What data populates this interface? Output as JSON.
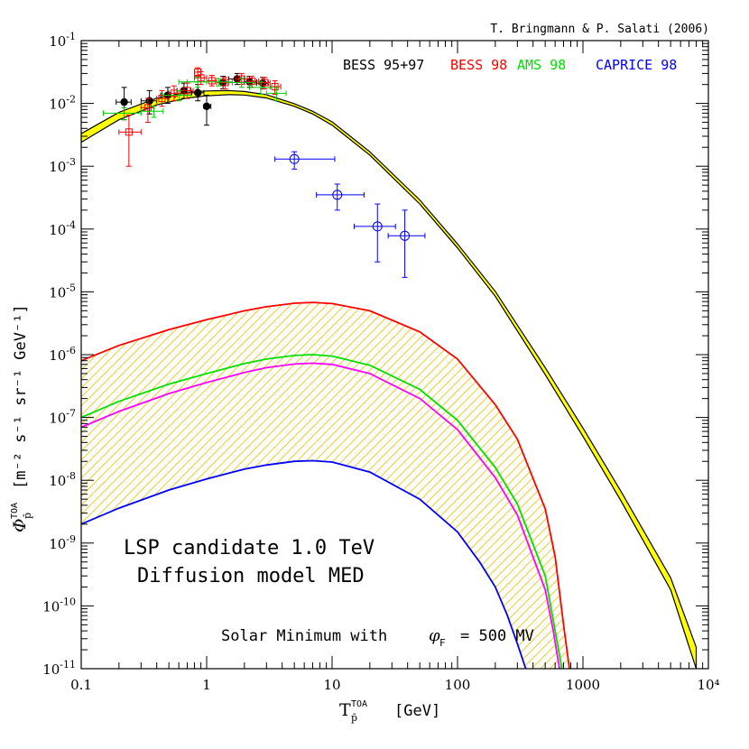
{
  "credit": "T. Bringmann & P. Salati (2006)",
  "chart_data": {
    "type": "line",
    "xscale": "log",
    "yscale": "log",
    "xlim": [
      0.1,
      10000
    ],
    "ylim": [
      1e-11,
      0.1
    ],
    "x_tick_labels": [
      "0.1",
      "1",
      "10",
      "100",
      "1000",
      "10⁴"
    ],
    "y_tick_labels": [
      {
        "m": "10",
        "e": "-1"
      },
      {
        "m": "10",
        "e": "-2"
      },
      {
        "m": "10",
        "e": "-3"
      },
      {
        "m": "10",
        "e": "-4"
      },
      {
        "m": "10",
        "e": "-5"
      },
      {
        "m": "10",
        "e": "-6"
      },
      {
        "m": "10",
        "e": "-7"
      },
      {
        "m": "10",
        "e": "-8"
      },
      {
        "m": "10",
        "e": "-9"
      },
      {
        "m": "10",
        "e": "-10"
      },
      {
        "m": "10",
        "e": "-11"
      }
    ],
    "xlabel": {
      "main": "T",
      "sup": "TOA",
      "sub": "p̄",
      "unit": "[GeV]"
    },
    "ylabel": {
      "main": "Φ",
      "sup": "TOA",
      "sub": "p̄",
      "unit": "[m⁻² s⁻¹ sr⁻¹ GeV⁻¹]"
    },
    "annotations": {
      "line1": "LSP candidate 1.0 TeV",
      "line2": "Diffusion model MED",
      "solar_prefix": "Solar Minimum with",
      "solar_phi": "φ",
      "solar_sub": "F",
      "solar_value": "= 500 MV"
    },
    "legend": [
      {
        "name": "BESS 95+97",
        "color": "#000000"
      },
      {
        "name": "BESS 98",
        "color": "#ff0000"
      },
      {
        "name": "AMS 98",
        "color": "#00cc00"
      },
      {
        "name": "CAPRICE 98",
        "color": "#0000ff"
      }
    ],
    "background_band": {
      "color": "#ffff00",
      "x": [
        0.1,
        0.2,
        0.4,
        0.7,
        1.0,
        1.5,
        2.0,
        3.0,
        5.0,
        7.0,
        10,
        20,
        50,
        100,
        200,
        500,
        1000,
        2000,
        5000,
        8000
      ],
      "lower": [
        0.0024,
        0.0055,
        0.0095,
        0.0122,
        0.0132,
        0.0138,
        0.0136,
        0.0122,
        0.009,
        0.0068,
        0.0045,
        0.0015,
        0.00025,
        5e-05,
        8.5e-06,
        4.8e-07,
        5e-08,
        4.8e-09,
        1.8e-10,
        1e-11
      ],
      "upper": [
        0.0033,
        0.0072,
        0.0121,
        0.015,
        0.0158,
        0.016,
        0.0155,
        0.0138,
        0.0099,
        0.0075,
        0.0051,
        0.0017,
        0.00029,
        5.8e-05,
        1.02e-05,
        6.2e-07,
        6.8e-08,
        6.8e-09,
        2.8e-10,
        2.2e-11
      ]
    },
    "series": [
      {
        "color": "#ff0000",
        "x": [
          0.1,
          0.2,
          0.5,
          1,
          2,
          3,
          5,
          7,
          10,
          20,
          50,
          100,
          200,
          300,
          500,
          600,
          700,
          780
        ],
        "values": [
          8e-07,
          1.4e-06,
          2.5e-06,
          3.6e-06,
          5e-06,
          5.8e-06,
          6.6e-06,
          6.8e-06,
          6.5e-06,
          5e-06,
          2.3e-06,
          8.5e-07,
          1.6e-07,
          4.5e-08,
          3.5e-09,
          6e-10,
          5e-11,
          1e-11
        ]
      },
      {
        "color": "#00e000",
        "x": [
          0.1,
          0.2,
          0.5,
          1,
          2,
          3,
          5,
          7,
          10,
          20,
          50,
          100,
          200,
          300,
          500,
          600,
          680
        ],
        "values": [
          1e-07,
          1.8e-07,
          3.4e-07,
          5e-07,
          7.2e-07,
          8.5e-07,
          9.7e-07,
          1e-06,
          9.5e-07,
          6.8e-07,
          2.8e-07,
          9e-08,
          1.6e-08,
          4.2e-09,
          3e-10,
          4e-11,
          1e-11
        ]
      },
      {
        "color": "#ff00ff",
        "x": [
          0.1,
          0.2,
          0.5,
          1,
          2,
          3,
          5,
          7,
          10,
          20,
          50,
          100,
          200,
          300,
          500,
          580,
          650
        ],
        "values": [
          7e-08,
          1.25e-07,
          2.4e-07,
          3.6e-07,
          5.2e-07,
          6.2e-07,
          7.1e-07,
          7.3e-07,
          7e-07,
          5e-07,
          2e-07,
          6.4e-08,
          1.1e-08,
          2.8e-09,
          1.8e-10,
          4e-11,
          1e-11
        ]
      },
      {
        "color": "#0000ff",
        "x": [
          0.1,
          0.2,
          0.5,
          1,
          2,
          3,
          5,
          7,
          10,
          20,
          50,
          100,
          150,
          200,
          250,
          300,
          350
        ],
        "values": [
          2e-09,
          3.6e-09,
          7e-09,
          1.05e-08,
          1.5e-08,
          1.75e-08,
          2e-08,
          2.05e-08,
          1.95e-08,
          1.35e-08,
          5e-09,
          1.5e-09,
          5e-10,
          2e-10,
          7e-11,
          2.5e-11,
          1e-11
        ]
      }
    ],
    "data_points": [
      {
        "set": "BESS 95+97",
        "color": "#000000",
        "marker": "filled-circle",
        "points": [
          {
            "x": 0.22,
            "y": 0.0105,
            "xe": [
              0.19,
              0.25
            ],
            "ye": [
              0.0055,
              0.018
            ]
          },
          {
            "x": 0.35,
            "y": 0.011,
            "xe": [
              0.3,
              0.4
            ],
            "ye": [
              0.0068,
              0.016
            ]
          },
          {
            "x": 0.49,
            "y": 0.0135,
            "xe": [
              0.43,
              0.56
            ],
            "ye": [
              0.01,
              0.018
            ]
          },
          {
            "x": 0.66,
            "y": 0.016,
            "xe": [
              0.58,
              0.75
            ],
            "ye": [
              0.012,
              0.021
            ]
          },
          {
            "x": 0.85,
            "y": 0.0148,
            "xe": [
              0.76,
              0.95
            ],
            "ye": [
              0.011,
              0.02
            ]
          },
          {
            "x": 1.0,
            "y": 0.009,
            "xe": [
              0.95,
              1.08
            ],
            "ye": [
              0.0045,
              0.0135
            ]
          },
          {
            "x": 1.35,
            "y": 0.0215,
            "xe": [
              1.2,
              1.5
            ],
            "ye": [
              0.017,
              0.027
            ]
          },
          {
            "x": 1.75,
            "y": 0.0245,
            "xe": [
              1.5,
              2.0
            ],
            "ye": [
              0.02,
              0.03
            ]
          },
          {
            "x": 2.2,
            "y": 0.022,
            "xe": [
              2.0,
              2.5
            ],
            "ye": [
              0.018,
              0.027
            ]
          },
          {
            "x": 2.8,
            "y": 0.021,
            "xe": [
              2.5,
              3.1
            ],
            "ye": [
              0.017,
              0.026
            ]
          }
        ]
      },
      {
        "set": "BESS 98",
        "color": "#ff0000",
        "marker": "open-square",
        "points": [
          {
            "x": 0.24,
            "y": 0.0035,
            "xe": [
              0.2,
              0.3
            ],
            "ye": [
              0.001,
              0.0065
            ]
          },
          {
            "x": 0.34,
            "y": 0.0085,
            "xe": [
              0.3,
              0.38
            ],
            "ye": [
              0.005,
              0.012
            ]
          },
          {
            "x": 0.44,
            "y": 0.012,
            "xe": [
              0.4,
              0.5
            ],
            "ye": [
              0.009,
              0.016
            ]
          },
          {
            "x": 0.55,
            "y": 0.0145,
            "xe": [
              0.5,
              0.62
            ],
            "ye": [
              0.011,
              0.019
            ]
          },
          {
            "x": 0.7,
            "y": 0.016,
            "xe": [
              0.62,
              0.78
            ],
            "ye": [
              0.012,
              0.021
            ]
          },
          {
            "x": 0.9,
            "y": 0.0255,
            "xe": [
              0.8,
              1.0
            ],
            "ye": [
              0.02,
              0.032
            ]
          },
          {
            "x": 0.85,
            "y": 0.0315,
            "xe": [
              0.8,
              0.9
            ],
            "ye": [
              0.027,
              0.037
            ]
          },
          {
            "x": 1.1,
            "y": 0.023,
            "xe": [
              1.0,
              1.2
            ],
            "ye": [
              0.019,
              0.028
            ]
          },
          {
            "x": 1.4,
            "y": 0.0215,
            "xe": [
              1.2,
              1.6
            ],
            "ye": [
              0.017,
              0.026
            ]
          },
          {
            "x": 1.9,
            "y": 0.0245,
            "xe": [
              1.7,
              2.1
            ],
            "ye": [
              0.02,
              0.03
            ]
          },
          {
            "x": 2.3,
            "y": 0.0225,
            "xe": [
              2.1,
              2.6
            ],
            "ye": [
              0.018,
              0.027
            ]
          },
          {
            "x": 2.9,
            "y": 0.0215,
            "xe": [
              2.6,
              3.2
            ],
            "ye": [
              0.017,
              0.026
            ]
          },
          {
            "x": 3.5,
            "y": 0.0185,
            "xe": [
              3.2,
              3.9
            ],
            "ye": [
              0.014,
              0.023
            ]
          }
        ]
      },
      {
        "set": "AMS 98",
        "color": "#00cc00",
        "marker": "cross",
        "points": [
          {
            "x": 0.22,
            "y": 0.007,
            "xe": [
              0.15,
              0.3
            ],
            "ye": [
              0.0055,
              0.0085
            ]
          },
          {
            "x": 0.38,
            "y": 0.0075,
            "xe": [
              0.3,
              0.45
            ],
            "ye": [
              0.006,
              0.009
            ]
          },
          {
            "x": 0.6,
            "y": 0.0135,
            "xe": [
              0.45,
              0.75
            ],
            "ye": [
              0.011,
              0.016
            ]
          },
          {
            "x": 0.85,
            "y": 0.022,
            "xe": [
              0.7,
              1.0
            ],
            "ye": [
              0.018,
              0.026
            ]
          },
          {
            "x": 1.25,
            "y": 0.022,
            "xe": [
              0.6,
              1.6
            ],
            "ye": [
              0.019,
              0.025
            ]
          },
          {
            "x": 1.9,
            "y": 0.0215,
            "xe": [
              1.5,
              2.4
            ],
            "ye": [
              0.018,
              0.025
            ]
          },
          {
            "x": 2.7,
            "y": 0.018,
            "xe": [
              2.2,
              3.3
            ],
            "ye": [
              0.014,
              0.022
            ]
          },
          {
            "x": 3.6,
            "y": 0.0145,
            "xe": [
              3.0,
              4.3
            ],
            "ye": [
              0.011,
              0.018
            ]
          }
        ]
      },
      {
        "set": "CAPRICE 98",
        "color": "#0000ff",
        "marker": "open-circle",
        "points": [
          {
            "x": 5.0,
            "y": 0.0013,
            "xe": [
              3.5,
              10.5
            ],
            "ye": [
              0.0009,
              0.0017
            ]
          },
          {
            "x": 11.0,
            "y": 0.00035,
            "xe": [
              7.5,
              18
            ],
            "ye": [
              0.0002,
              0.00052
            ]
          },
          {
            "x": 23.0,
            "y": 0.00011,
            "xe": [
              15,
              32
            ],
            "ye": [
              3e-05,
              0.00025
            ]
          },
          {
            "x": 38.0,
            "y": 7.8e-05,
            "xe": [
              28,
              55
            ],
            "ye": [
              1.7e-05,
              0.0002
            ]
          }
        ]
      }
    ]
  }
}
